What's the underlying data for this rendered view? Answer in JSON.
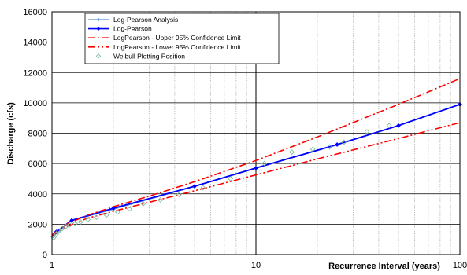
{
  "chart_data": {
    "type": "line",
    "xscale": "log",
    "xlim": [
      1,
      100
    ],
    "ylim": [
      0,
      16000
    ],
    "xlabel": "Recurrence Interval (years)",
    "ylabel": "Discharge (cfs)",
    "xticks": [
      {
        "value": 1,
        "label": "1"
      },
      {
        "value": 10,
        "label": "10"
      },
      {
        "value": 100,
        "label": "100"
      }
    ],
    "yticks": [
      {
        "value": 0,
        "label": "0"
      },
      {
        "value": 2000,
        "label": "2000"
      },
      {
        "value": 4000,
        "label": "4000"
      },
      {
        "value": 6000,
        "label": "6000"
      },
      {
        "value": 8000,
        "label": "8000"
      },
      {
        "value": 10000,
        "label": "10000"
      },
      {
        "value": 12000,
        "label": "12000"
      },
      {
        "value": 14000,
        "label": "14000"
      },
      {
        "value": 16000,
        "label": "16000"
      }
    ],
    "grid": {
      "x_major": true,
      "x_minor": true,
      "y_major": true
    },
    "legend": {
      "placement": "top-left"
    },
    "series": [
      {
        "name": "Log-Pearson Analysis",
        "color": "#6fa8dc",
        "style": "solid-markers",
        "x": [
          1.01,
          1.25,
          2,
          5,
          10,
          25,
          50,
          100
        ],
        "y": [
          1200,
          2250,
          3000,
          4500,
          5700,
          7250,
          8500,
          9900
        ]
      },
      {
        "name": "Log-Pearson",
        "color": "#0000ff",
        "style": "solid-markers",
        "x": [
          1.05,
          1.25,
          2,
          5,
          10,
          25,
          50,
          100
        ],
        "y": [
          1500,
          2250,
          3050,
          4500,
          5700,
          7250,
          8500,
          9900
        ]
      },
      {
        "name": "LogPearson - Upper 95% Confidence Limit",
        "color": "#ff0000",
        "style": "dash-dot",
        "x": [
          1,
          1.2,
          1.5,
          2,
          3,
          5,
          10,
          20,
          50,
          100
        ],
        "y": [
          1300,
          2050,
          2600,
          3150,
          3850,
          4800,
          6200,
          7750,
          9900,
          11600
        ]
      },
      {
        "name": "LogPearson - Lower 95% Confidence Limit",
        "color": "#ff0000",
        "style": "dash-dot-dot",
        "x": [
          1,
          1.2,
          1.5,
          2,
          3,
          5,
          10,
          20,
          50,
          100
        ],
        "y": [
          1250,
          1900,
          2400,
          2850,
          3450,
          4200,
          5250,
          6300,
          7650,
          8700
        ]
      },
      {
        "name": "Weibull Plotting Position",
        "color": "#7fbfa0",
        "style": "open-diamond",
        "x": [
          1.02,
          1.05,
          1.08,
          1.12,
          1.17,
          1.22,
          1.3,
          1.38,
          1.5,
          1.65,
          1.85,
          2.1,
          2.4,
          2.8,
          3.4,
          4.2,
          5.5,
          7.5,
          11,
          15,
          19,
          23,
          27,
          35,
          45
        ],
        "y": [
          1100,
          1350,
          1550,
          1700,
          1850,
          1950,
          2050,
          2150,
          2300,
          2450,
          2600,
          2800,
          3000,
          3350,
          3600,
          3950,
          4400,
          5000,
          6000,
          6750,
          6950,
          7100,
          7400,
          8100,
          8500
        ]
      }
    ]
  }
}
